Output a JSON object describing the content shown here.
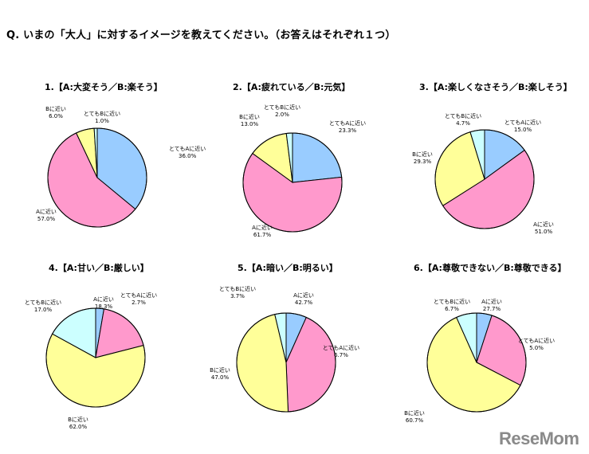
{
  "question": "Q. いまの「大人」に対するイメージを教えてください。（お答えはそれぞれ１つ）",
  "logo": "ReseMom",
  "colors": {
    "very_a": "#99ccff",
    "a": "#ff99cc",
    "b": "#ffff99",
    "very_b": "#ccffff"
  },
  "chart_data": [
    {
      "type": "pie",
      "title": "1.【A:大変そう／B:楽そう】",
      "slices": [
        {
          "key": "very_a",
          "label": "とてもAに近い",
          "value": 36.0,
          "value_label": "36.0%"
        },
        {
          "key": "a",
          "label": "Aに近い",
          "value": 57.0,
          "value_label": "57.0%"
        },
        {
          "key": "b",
          "label": "Bに近い",
          "value": 6.0,
          "value_label": "6.0%"
        },
        {
          "key": "very_b",
          "label": "とてもBに近い",
          "value": 1.0,
          "value_label": "1.0%"
        }
      ]
    },
    {
      "type": "pie",
      "title": "2.【A:疲れている／B:元気】",
      "slices": [
        {
          "key": "very_a",
          "label": "とてもAに近い",
          "value": 23.3,
          "value_label": "23.3%"
        },
        {
          "key": "a",
          "label": "Aに近い",
          "value": 61.7,
          "value_label": "61.7%"
        },
        {
          "key": "b",
          "label": "Bに近い",
          "value": 13.0,
          "value_label": "13.0%"
        },
        {
          "key": "very_b",
          "label": "とてもBに近い",
          "value": 2.0,
          "value_label": "2.0%"
        }
      ]
    },
    {
      "type": "pie",
      "title": "3.【A:楽しくなさそう／B:楽しそう】",
      "slices": [
        {
          "key": "very_a",
          "label": "とてもAに近い",
          "value": 15.0,
          "value_label": "15.0%"
        },
        {
          "key": "a",
          "label": "Aに近い",
          "value": 51.0,
          "value_label": "51.0%"
        },
        {
          "key": "b",
          "label": "Bに近い",
          "value": 29.3,
          "value_label": "29.3%"
        },
        {
          "key": "very_b",
          "label": "とてもBに近い",
          "value": 4.7,
          "value_label": "4.7%"
        }
      ]
    },
    {
      "type": "pie",
      "title": "4.【A:甘い／B:厳しい】",
      "slices": [
        {
          "key": "very_a",
          "label": "とてもAに近い",
          "value": 2.7,
          "value_label": "2.7%"
        },
        {
          "key": "a",
          "label": "Aに近い",
          "value": 18.3,
          "value_label": "18.3%"
        },
        {
          "key": "b",
          "label": "Bに近い",
          "value": 62.0,
          "value_label": "62.0%"
        },
        {
          "key": "very_b",
          "label": "とてもBに近い",
          "value": 17.0,
          "value_label": "17.0%"
        }
      ]
    },
    {
      "type": "pie",
      "title": "5.【A:暗い／B:明るい】",
      "slices": [
        {
          "key": "very_a",
          "label": "とてもAに近い",
          "value": 6.7,
          "value_label": "6.7%"
        },
        {
          "key": "a",
          "label": "Aに近い",
          "value": 42.7,
          "value_label": "42.7%"
        },
        {
          "key": "b",
          "label": "Bに近い",
          "value": 47.0,
          "value_label": "47.0%"
        },
        {
          "key": "very_b",
          "label": "とてもBに近い",
          "value": 3.7,
          "value_label": "3.7%"
        }
      ]
    },
    {
      "type": "pie",
      "title": "6.【A:尊敬できない／B:尊敬できる】",
      "slices": [
        {
          "key": "very_a",
          "label": "とてもAに近い",
          "value": 5.0,
          "value_label": "5.0%"
        },
        {
          "key": "a",
          "label": "Aに近い",
          "value": 27.7,
          "value_label": "27.7%"
        },
        {
          "key": "b",
          "label": "Bに近い",
          "value": 60.7,
          "value_label": "60.7%"
        },
        {
          "key": "very_b",
          "label": "とてもBに近い",
          "value": 6.7,
          "value_label": "6.7%"
        }
      ]
    }
  ]
}
